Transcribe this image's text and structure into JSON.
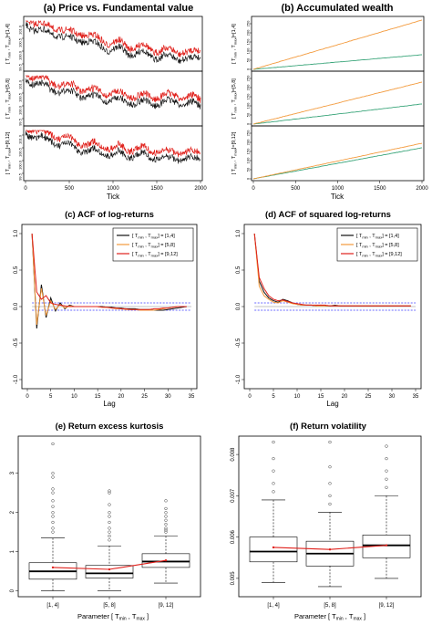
{
  "figure": {
    "panels": {
      "a": {
        "letter": "(a)",
        "title": "Price vs. Fundamental value",
        "xlabel": "Tick",
        "xticks": [
          "0",
          "500",
          "1000",
          "1500",
          "2000"
        ],
        "row_labels": [
          "[ T",
          "[ T",
          "[ T"
        ],
        "row_ranges": [
          "]=[1,4]",
          "]=[5,8]",
          "]=[9,12]"
        ],
        "yticks": [
          "101.0",
          "100.5",
          "100.0",
          "99.5"
        ]
      },
      "b": {
        "letter": "(b)",
        "title": "Accumulated wealth",
        "xlabel": "Tick",
        "xticks": [
          "0",
          "500",
          "1000",
          "1500",
          "2000"
        ],
        "yticks": [
          "0",
          "50",
          "100",
          "150",
          "200",
          "250"
        ]
      },
      "c": {
        "letter": "(c)",
        "title": "ACF of log-returns",
        "xlabel": "Lag",
        "xticks": [
          "0",
          "5",
          "10",
          "15",
          "20",
          "25",
          "30",
          "35"
        ],
        "yticks": [
          "1.0",
          "0.5",
          "0.0",
          "-0.5",
          "-1.0"
        ],
        "legend": [
          "[ T",
          "[ T",
          "[ T"
        ],
        "legend_ranges": [
          "] = [1,4]",
          "] = [5,8]",
          "] = [9,12]"
        ]
      },
      "d": {
        "letter": "(d)",
        "title": "ACF of squared log-returns",
        "xlabel": "Lag",
        "xticks": [
          "0",
          "5",
          "10",
          "15",
          "20",
          "25",
          "30",
          "35"
        ],
        "yticks": [
          "1.0",
          "0.5",
          "0.0",
          "-0.5",
          "-1.0"
        ],
        "legend": [
          "[ T",
          "[ T",
          "[ T"
        ],
        "legend_ranges": [
          "] = [1,4]",
          "] = [5,8]",
          "] = [9,12]"
        ]
      },
      "e": {
        "letter": "(e)",
        "title": "Return excess kurtosis",
        "yticks": [
          "0",
          "1",
          "2",
          "3"
        ],
        "categories": [
          "[1, 4]",
          "[5, 8]",
          "[9, 12]"
        ]
      },
      "f": {
        "letter": "(f)",
        "title": "Return volatility",
        "yticks": [
          "0.005",
          "0.006",
          "0.007",
          "0.008"
        ],
        "categories": [
          "[1, 4]",
          "[5, 8]",
          "[9, 12]"
        ]
      },
      "xlabel_boxplots": "Parameter [ T",
      "sub_min": "min",
      "sub_max": "max",
      "comma": " , ",
      "close": " ]"
    },
    "colors": {
      "black": "#111111",
      "red": "#e0201b",
      "orange": "#f39a3c",
      "teal": "#3aa57a",
      "blue": "#3b3bff",
      "grey": "#888888"
    }
  },
  "chart_data": [
    {
      "id": "a",
      "type": "line",
      "x_range": [
        0,
        2000
      ],
      "series": [
        {
          "values_desc": "fundamental"
        },
        {
          "values_desc": "price"
        }
      ],
      "x": [
        0,
        500,
        1000,
        1500,
        2000
      ]
    },
    {
      "id": "b",
      "type": "line",
      "x_range": [
        0,
        2000
      ],
      "ylim": [
        0,
        280
      ],
      "rows": [
        {
          "end": {
            "orange": 270,
            "teal": 80
          }
        },
        {
          "end": {
            "orange": 230,
            "teal": 110
          }
        },
        {
          "end": {
            "orange": 195,
            "teal": 170
          }
        }
      ]
    },
    {
      "id": "c",
      "type": "line",
      "xlim": [
        0,
        35
      ],
      "ylim": [
        -1,
        1
      ],
      "conf": 0.05,
      "series": [
        {
          "color": "black",
          "values": [
            1.0,
            -0.3,
            0.3,
            -0.15,
            0.12,
            -0.06,
            0.05,
            -0.03,
            0.02,
            0,
            0,
            0,
            0,
            0,
            0,
            0,
            -0.01,
            -0.01,
            -0.02,
            -0.02,
            -0.03,
            -0.03,
            -0.03,
            -0.04,
            -0.04,
            -0.04,
            -0.05,
            -0.05,
            -0.05,
            -0.04,
            -0.03,
            -0.02,
            -0.01,
            0
          ]
        },
        {
          "color": "orange",
          "values": [
            1.0,
            -0.25,
            0.25,
            -0.12,
            0.08,
            -0.04,
            0.03,
            -0.02,
            0.01,
            0,
            0,
            0,
            0,
            0,
            0,
            -0.01,
            -0.01,
            -0.02,
            -0.03,
            -0.03,
            -0.04,
            -0.04,
            -0.04,
            -0.05,
            -0.05,
            -0.05,
            -0.05,
            -0.04,
            -0.03,
            -0.02,
            -0.01,
            0,
            0,
            0
          ]
        },
        {
          "color": "red",
          "values": [
            1.0,
            0.2,
            0.1,
            0.15,
            0.05,
            0.03,
            0.02,
            0.01,
            0,
            0,
            0,
            0,
            0,
            0,
            0,
            -0.01,
            -0.01,
            -0.02,
            -0.02,
            -0.03,
            -0.03,
            -0.04,
            -0.04,
            -0.04,
            -0.04,
            -0.04,
            -0.03,
            -0.03,
            -0.02,
            -0.02,
            -0.01,
            0,
            0,
            0
          ]
        }
      ]
    },
    {
      "id": "d",
      "type": "line",
      "xlim": [
        0,
        35
      ],
      "ylim": [
        -1,
        1
      ],
      "conf": 0.05,
      "series": [
        {
          "color": "black",
          "values": [
            1.0,
            0.35,
            0.2,
            0.12,
            0.08,
            0.06,
            0.1,
            0.08,
            0.05,
            0.03,
            0.02,
            0.02,
            0.02,
            0.01,
            0.02,
            0.01,
            0.01,
            0.02,
            0.01,
            0.01,
            0.01,
            0.01,
            0.01,
            0.01,
            0.01,
            0.01,
            0.01,
            0.01,
            0.01,
            0.01,
            0.01,
            0.01,
            0.01,
            0.01
          ]
        },
        {
          "color": "orange",
          "values": [
            1.0,
            0.28,
            0.15,
            0.1,
            0.06,
            0.05,
            0.08,
            0.06,
            0.04,
            0.03,
            0.02,
            0.02,
            0.02,
            0.01,
            0.01,
            0.01,
            0.01,
            0.01,
            0.01,
            0.01,
            0.01,
            0.01,
            0.01,
            0.01,
            0.01,
            0.01,
            0.01,
            0.01,
            0.01,
            0.01,
            0.01,
            0.01,
            0.01,
            0.01
          ]
        },
        {
          "color": "red",
          "values": [
            1.0,
            0.4,
            0.25,
            0.15,
            0.1,
            0.08,
            0.09,
            0.07,
            0.05,
            0.04,
            0.03,
            0.02,
            0.02,
            0.02,
            0.02,
            0.02,
            0.01,
            0.01,
            0.01,
            0.01,
            0.01,
            0.01,
            0.01,
            0.01,
            0.01,
            0.01,
            0.01,
            0.01,
            0.01,
            0.01,
            0.01,
            0.01,
            0.01,
            0.01
          ]
        }
      ]
    },
    {
      "id": "e",
      "type": "box",
      "ylim": [
        -0.1,
        3.9
      ],
      "boxes": [
        {
          "whisk_lo": 0.0,
          "q1": 0.3,
          "med": 0.5,
          "q3": 0.72,
          "whisk_hi": 1.35,
          "mean": 0.6,
          "outliers": [
            1.5,
            1.6,
            1.75,
            1.9,
            2.0,
            2.15,
            2.3,
            2.5,
            2.6,
            2.9,
            3.0,
            3.75
          ]
        },
        {
          "whisk_lo": 0.0,
          "q1": 0.33,
          "med": 0.45,
          "q3": 0.65,
          "whisk_hi": 1.15,
          "mean": 0.55,
          "outliers": [
            1.3,
            1.4,
            1.5,
            1.6,
            1.75,
            1.9,
            2.0,
            2.2,
            2.5,
            2.55
          ]
        },
        {
          "whisk_lo": 0.2,
          "q1": 0.6,
          "med": 0.75,
          "q3": 0.95,
          "whisk_hi": 1.4,
          "mean": 0.78,
          "outliers": [
            1.5,
            1.55,
            1.6,
            1.7,
            1.8,
            1.9,
            2.0,
            2.1,
            2.3
          ]
        }
      ]
    },
    {
      "id": "f",
      "type": "box",
      "ylim": [
        0.0046,
        0.0084
      ],
      "boxes": [
        {
          "whisk_lo": 0.0049,
          "q1": 0.0054,
          "med": 0.00565,
          "q3": 0.006,
          "whisk_hi": 0.0069,
          "mean": 0.00575,
          "outliers": [
            0.0071,
            0.0073,
            0.0076,
            0.0079,
            0.0083
          ]
        },
        {
          "whisk_lo": 0.0048,
          "q1": 0.0053,
          "med": 0.0056,
          "q3": 0.0059,
          "whisk_hi": 0.0066,
          "mean": 0.0057,
          "outliers": [
            0.0068,
            0.007,
            0.0073,
            0.0077,
            0.0083
          ]
        },
        {
          "whisk_lo": 0.005,
          "q1": 0.0055,
          "med": 0.0058,
          "q3": 0.00605,
          "whisk_hi": 0.007,
          "mean": 0.0058,
          "outliers": [
            0.0072,
            0.0074,
            0.0076,
            0.0079,
            0.0082
          ]
        }
      ]
    }
  ]
}
